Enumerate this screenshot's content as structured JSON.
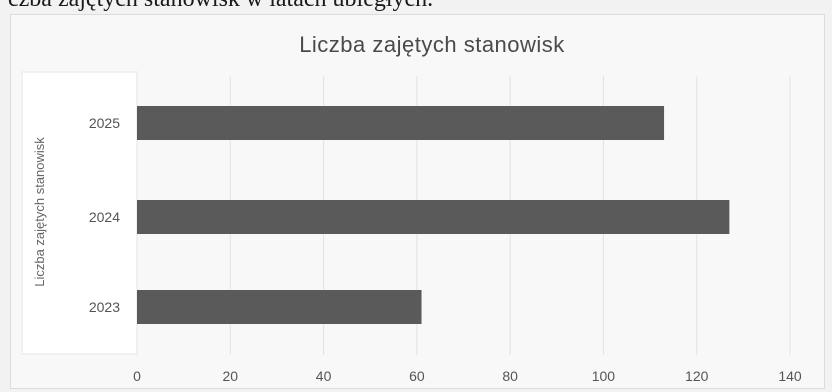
{
  "document": {
    "caption_fragment": "czba zajętych stanowisk w latach ubiegłych."
  },
  "chart_data": {
    "type": "bar",
    "orientation": "horizontal",
    "title": "Liczba zajętych stanowisk",
    "xlabel": "",
    "ylabel": "Liczba zajętych stanowisk",
    "categories": [
      "2025",
      "2024",
      "2023"
    ],
    "values": [
      113,
      127,
      61
    ],
    "xlim": [
      0,
      140
    ],
    "x_ticks": [
      0,
      20,
      40,
      60,
      80,
      100,
      120,
      140
    ],
    "grid": true,
    "bar_color": "#5a5a5a",
    "grid_color": "#e3e3e3"
  }
}
